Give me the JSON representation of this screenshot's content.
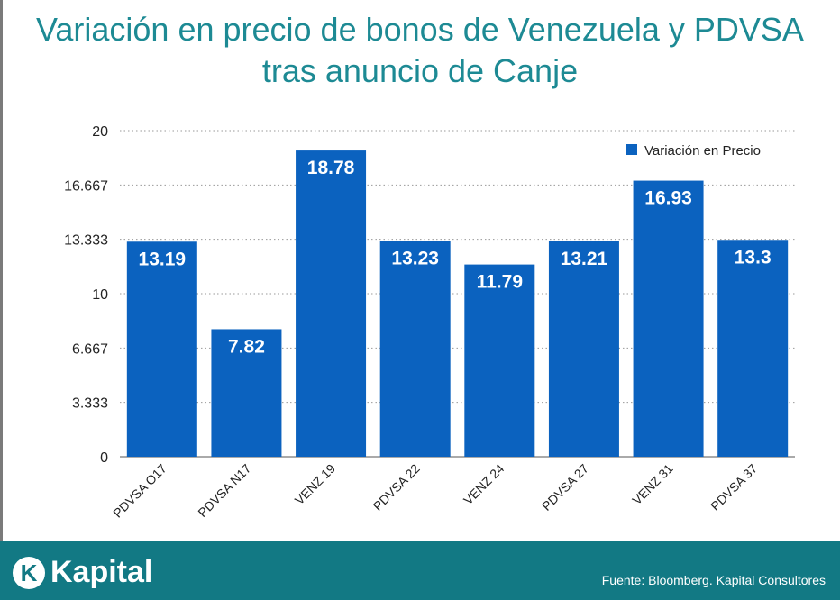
{
  "header": {
    "title_line1": "Variación en precio de bonos de Venezuela y PDVSA",
    "title_line2": "tras anuncio de Canje"
  },
  "colors": {
    "bar": "#0b62bf",
    "title": "#1d8a94",
    "footer": "#127984",
    "grid": "#9a9a9a"
  },
  "chart_data": {
    "type": "bar",
    "categories": [
      "PDVSA O17",
      "PDVSA N17",
      "VENZ 19",
      "PDVSA 22",
      "VENZ 24",
      "PDVSA 27",
      "VENZ 31",
      "PDVSA 37"
    ],
    "series": [
      {
        "name": "Variación en Precio",
        "values": [
          13.19,
          7.82,
          18.78,
          13.23,
          11.79,
          13.21,
          16.93,
          13.3
        ]
      }
    ],
    "data_labels": [
      "13.19",
      "7.82",
      "18.78",
      "13.23",
      "11.79",
      "13.21",
      "16.93",
      "13.3"
    ],
    "y_ticks": [
      0,
      3.333,
      6.667,
      10,
      13.333,
      16.667,
      20
    ],
    "y_tick_labels": [
      "0",
      "3.333",
      "6.667",
      "10",
      "13.333",
      "16.667",
      "20"
    ],
    "ylim": [
      0,
      20
    ],
    "grid": true,
    "legend_position": "top-right",
    "xlabel": "",
    "ylabel": ""
  },
  "footer": {
    "logo_letter": "K",
    "logo_text": "Kapital",
    "source": "Fuente: Bloomberg. Kapital Consultores"
  }
}
